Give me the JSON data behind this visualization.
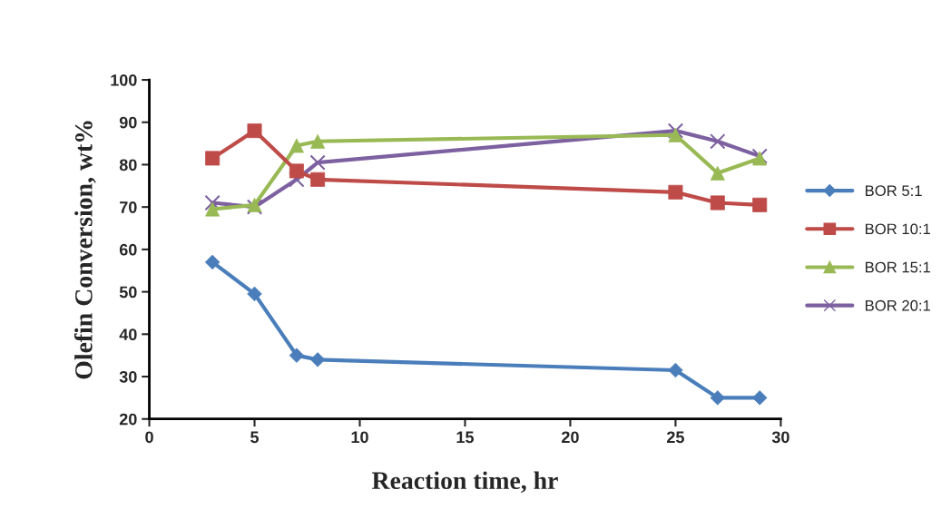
{
  "chart_data": {
    "type": "line",
    "xlabel": "Reaction time, hr",
    "ylabel": "Olefin Conversion, wt%",
    "x": [
      3,
      5,
      7,
      8,
      25,
      27,
      29
    ],
    "series": [
      {
        "name": "BOR 5:1",
        "color": "#4a7ebb",
        "marker": "diamond",
        "values": [
          57,
          49.5,
          35,
          34,
          31.5,
          25,
          25
        ]
      },
      {
        "name": "BOR 10:1",
        "color": "#be4b48",
        "marker": "square",
        "values": [
          81.5,
          88,
          78.5,
          76.5,
          73.5,
          71,
          70.5
        ]
      },
      {
        "name": "BOR 15:1",
        "color": "#98b954",
        "marker": "triangle",
        "values": [
          69.5,
          70.5,
          84.5,
          85.5,
          87,
          78,
          81.5
        ]
      },
      {
        "name": "BOR 20:1",
        "color": "#7d60a0",
        "marker": "cross",
        "values": [
          71,
          70,
          76.5,
          80.5,
          88,
          85.5,
          82
        ]
      }
    ],
    "xlim": [
      0,
      30
    ],
    "xticks": [
      0,
      5,
      10,
      15,
      20,
      25,
      30
    ],
    "ylim": [
      20,
      100
    ],
    "yticks": [
      20,
      30,
      40,
      50,
      60,
      70,
      80,
      90,
      100
    ],
    "grid": false,
    "legend": "right"
  }
}
